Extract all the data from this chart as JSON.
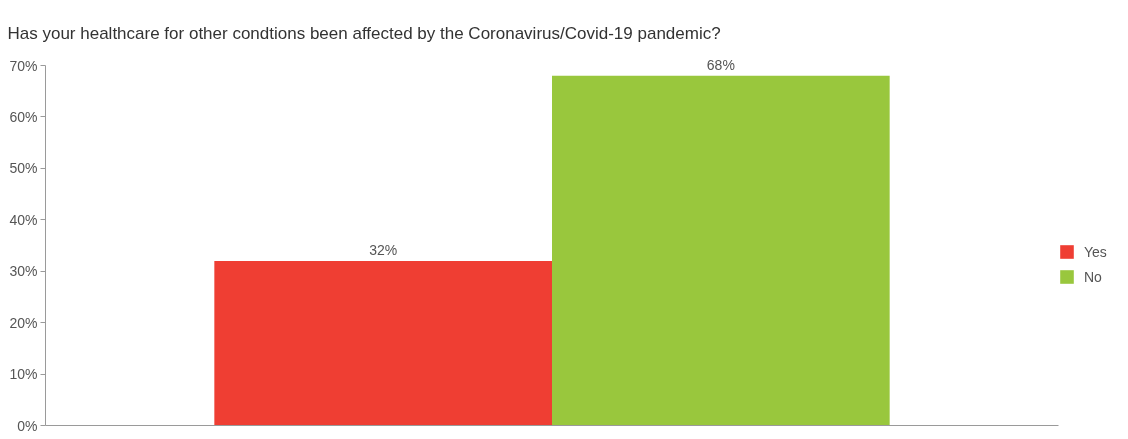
{
  "chart_data": {
    "type": "bar",
    "title": "Has your healthcare for other condtions been affected by the Coronavirus/Covid-19 pandemic?",
    "categories": [
      null
    ],
    "series": [
      {
        "name": "Yes",
        "color": "#ef3e33",
        "values": [
          32
        ],
        "value_labels": [
          "32%"
        ]
      },
      {
        "name": "No",
        "color": "#99c73d",
        "values": [
          68
        ],
        "value_labels": [
          "68%"
        ]
      }
    ],
    "ylim": [
      0,
      70
    ],
    "yticks": [
      {
        "value": 0,
        "label": "0%"
      },
      {
        "value": 10,
        "label": "10%"
      },
      {
        "value": 20,
        "label": "20%"
      },
      {
        "value": 30,
        "label": "30%"
      },
      {
        "value": 40,
        "label": "40%"
      },
      {
        "value": 50,
        "label": "50%"
      },
      {
        "value": 60,
        "label": "60%"
      },
      {
        "value": 70,
        "label": "70%"
      }
    ],
    "grid": false,
    "legend": "right"
  }
}
